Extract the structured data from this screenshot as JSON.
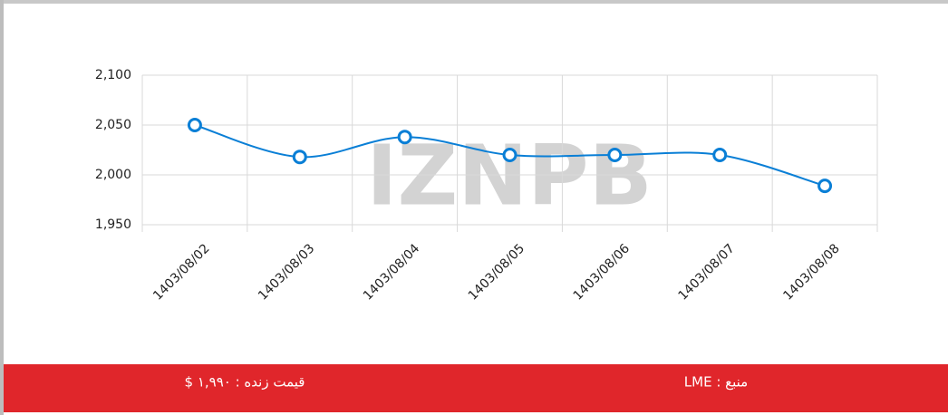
{
  "chart_data": {
    "type": "line",
    "categories": [
      "1403/08/02",
      "1403/08/03",
      "1403/08/04",
      "1403/08/05",
      "1403/08/06",
      "1403/08/07",
      "1403/08/08"
    ],
    "series": [
      {
        "color": "#0a7fd6",
        "values": [
          2050,
          2018,
          2038,
          2020,
          2020,
          2020,
          1989
        ]
      }
    ],
    "ylim": [
      1950,
      2100
    ],
    "yticks": [
      {
        "value": 1950,
        "label": "1,950"
      },
      {
        "value": 2000,
        "label": "2,000"
      },
      {
        "value": 2050,
        "label": "2,050"
      },
      {
        "value": 2100,
        "label": "2,100"
      }
    ],
    "grid": true,
    "watermark": "IZNPB"
  },
  "footer": {
    "source": "منبع : LME",
    "live_price": "قیمت زنده : ۱,۹۹۰ $",
    "color": "#e0262b"
  }
}
